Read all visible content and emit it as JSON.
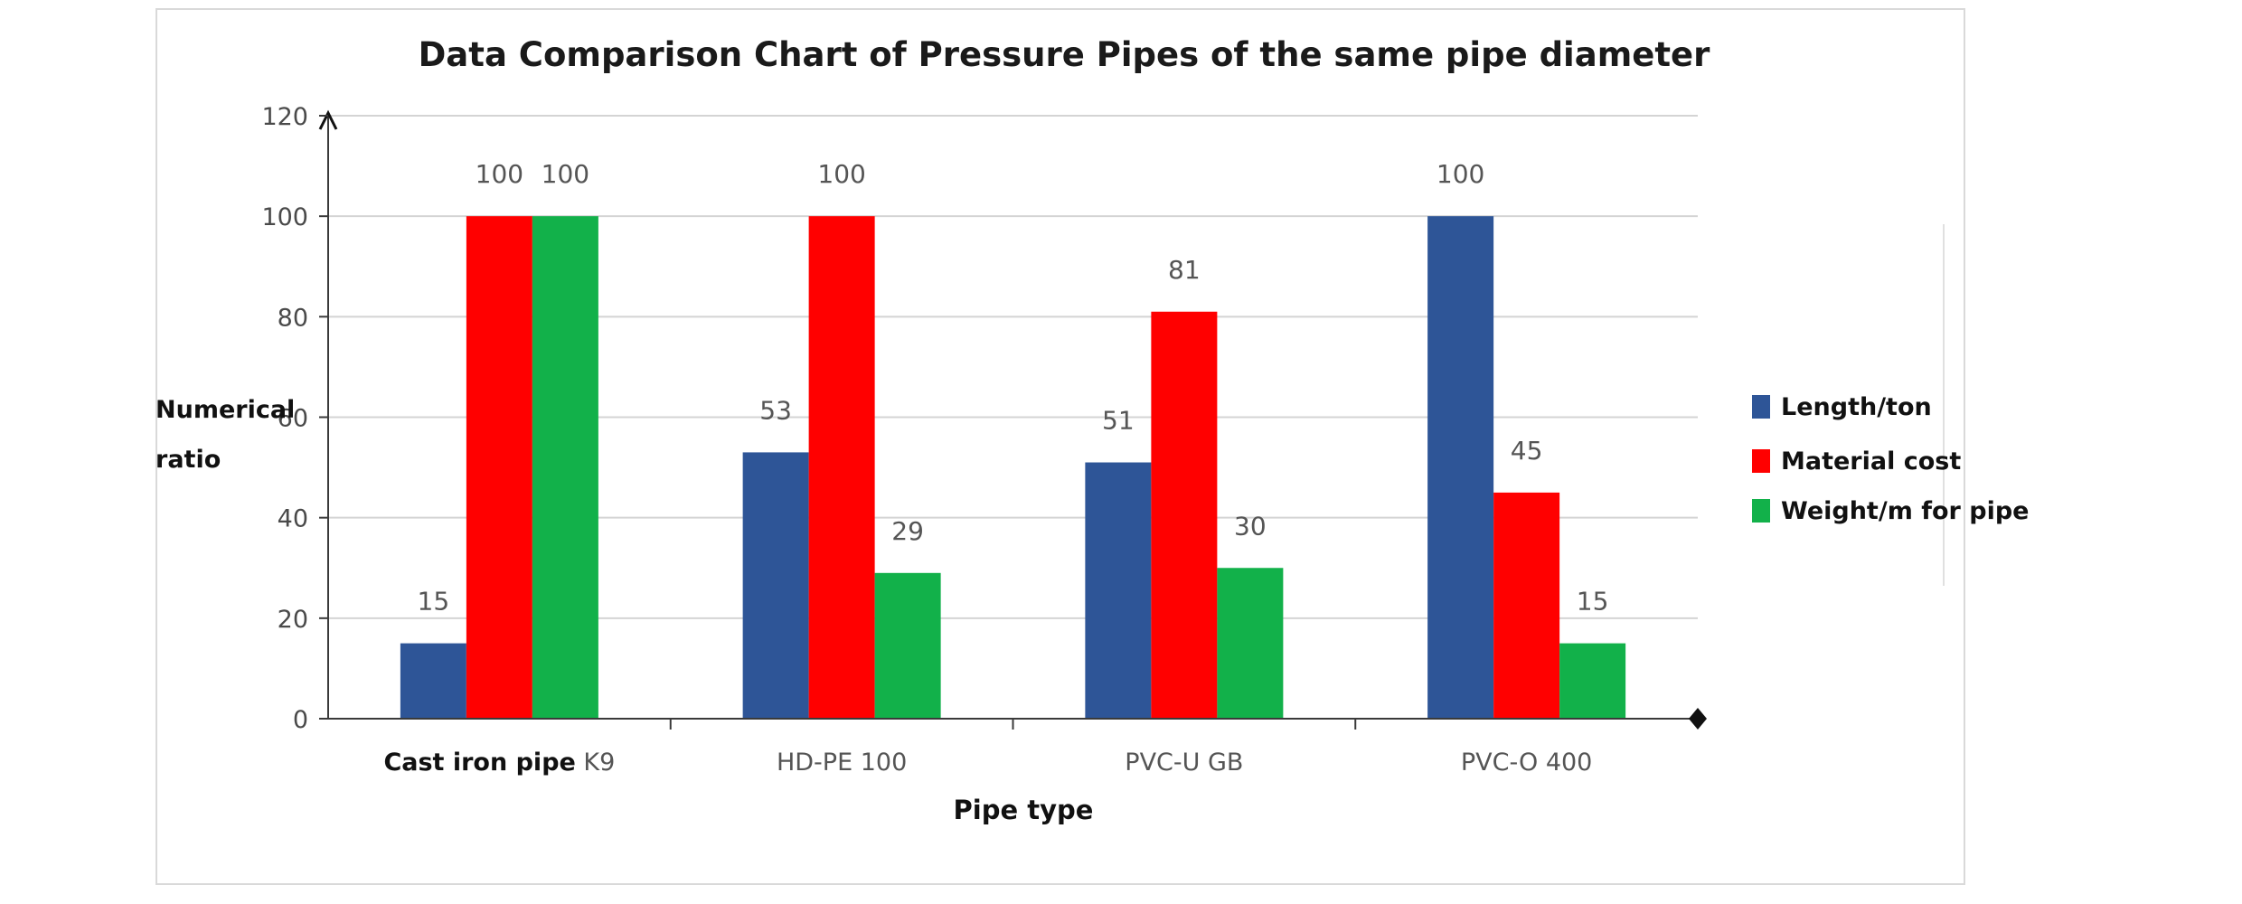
{
  "chart_data": {
    "type": "bar",
    "title": "Data Comparison Chart of Pressure Pipes of the same pipe diameter",
    "xlabel": "Pipe type",
    "ylabel_lines": [
      "Numerical",
      "ratio"
    ],
    "categories": [
      {
        "bold": "Cast iron pipe",
        "rest": " K9"
      },
      {
        "bold": "",
        "rest": "HD-PE 100"
      },
      {
        "bold": "",
        "rest": "PVC-U  GB"
      },
      {
        "bold": "",
        "rest": "PVC-O 400"
      }
    ],
    "series": [
      {
        "name": "Length/ton",
        "color": "#2e5597",
        "values": [
          15,
          53,
          51,
          100
        ]
      },
      {
        "name": "Material cost",
        "color": "#ff0000",
        "values": [
          100,
          100,
          81,
          45
        ]
      },
      {
        "name": "Weight/m for pipe",
        "color": "#12b14a",
        "values": [
          100,
          29,
          30,
          15
        ]
      }
    ],
    "data_labels": [
      [
        15,
        53,
        51,
        100
      ],
      [
        100,
        100,
        81,
        45
      ],
      [
        100,
        29,
        30,
        15
      ]
    ],
    "ylim": [
      0,
      120
    ],
    "yticks": [
      0,
      20,
      40,
      60,
      80,
      100,
      120
    ],
    "grid": true,
    "legend": "right"
  }
}
